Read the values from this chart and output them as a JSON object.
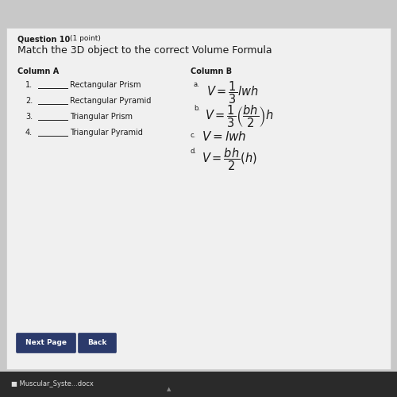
{
  "background_color": "#c8c8c8",
  "page_background": "#efefef",
  "question_label": "Question 10",
  "question_points": "(1 point)",
  "title": "Match the 3D object to the correct Volume Formula",
  "col_a_header": "Column A",
  "col_b_header": "Column B",
  "col_a_items": [
    {
      "num": "1.",
      "label": "Rectangular Prism"
    },
    {
      "num": "2.",
      "label": "Rectangular Pyramid"
    },
    {
      "num": "3.",
      "label": "Triangular Prism"
    },
    {
      "num": "4.",
      "label": "Triangular Pyramid"
    }
  ],
  "buttons": [
    "Next Page",
    "Back"
  ],
  "footer": "Muscular_Syste...docx",
  "text_color": "#1a1a1a",
  "button_color": "#2b3a6b",
  "button_text_color": "#ffffff",
  "footer_bg": "#2a2a2a"
}
